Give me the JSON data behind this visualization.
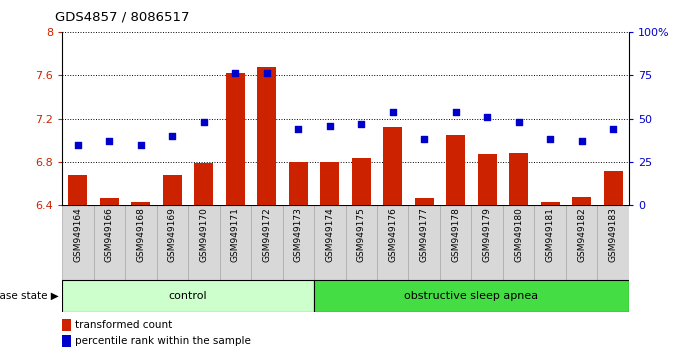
{
  "title": "GDS4857 / 8086517",
  "samples": [
    "GSM949164",
    "GSM949166",
    "GSM949168",
    "GSM949169",
    "GSM949170",
    "GSM949171",
    "GSM949172",
    "GSM949173",
    "GSM949174",
    "GSM949175",
    "GSM949176",
    "GSM949177",
    "GSM949178",
    "GSM949179",
    "GSM949180",
    "GSM949181",
    "GSM949182",
    "GSM949183"
  ],
  "bar_values": [
    6.68,
    6.47,
    6.43,
    6.68,
    6.79,
    7.62,
    7.68,
    6.8,
    6.8,
    6.84,
    7.12,
    6.47,
    7.05,
    6.87,
    6.88,
    6.43,
    6.48,
    6.72
  ],
  "dot_values": [
    35,
    37,
    35,
    40,
    48,
    76,
    76,
    44,
    46,
    47,
    54,
    38,
    54,
    51,
    48,
    38,
    37,
    44
  ],
  "bar_color": "#cc2200",
  "dot_color": "#0000cc",
  "ylim_left": [
    6.4,
    8.0
  ],
  "ylim_right": [
    0,
    100
  ],
  "yticks_left": [
    6.4,
    6.8,
    7.2,
    7.6,
    8.0
  ],
  "ytick_labels_left": [
    "6.4",
    "6.8",
    "7.2",
    "7.6",
    "8"
  ],
  "yticks_right": [
    0,
    25,
    50,
    75,
    100
  ],
  "ytick_labels_right": [
    "0",
    "25",
    "50",
    "75",
    "100%"
  ],
  "control_count": 8,
  "control_label": "control",
  "apnea_label": "obstructive sleep apnea",
  "disease_state_label": "disease state",
  "legend_bar_label": "transformed count",
  "legend_dot_label": "percentile rank within the sample",
  "bg_color": "#ffffff",
  "control_bg": "#ccffcc",
  "apnea_bg": "#44dd44",
  "baseline": 6.4,
  "bar_width": 0.6
}
